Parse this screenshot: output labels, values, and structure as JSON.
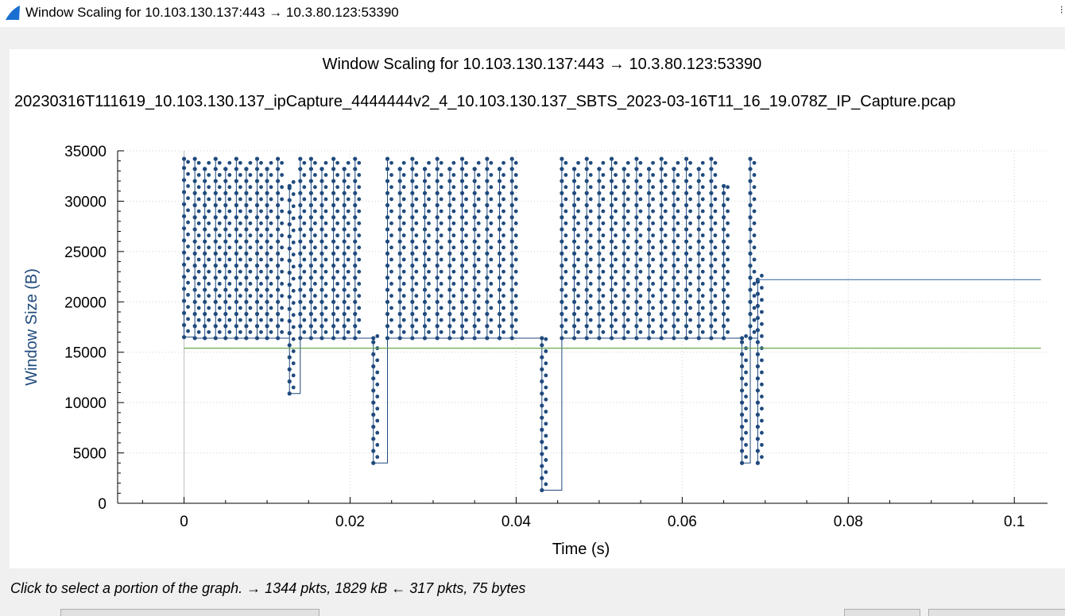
{
  "window": {
    "title": "Window Scaling for 10.103.130.137:443 → 10.3.80.123:53390",
    "icon": "wireshark-fin-icon"
  },
  "plot": {
    "title": "Window Scaling for 10.103.130.137:443 → 10.3.80.123:53390",
    "subtitle": "20230316T111619_10.103.130.137_ipCapture_4444444v2_4_10.103.130.137_SBTS_2023-03-16T11_16_19.078Z_IP_Capture.pcap"
  },
  "chart_data": {
    "type": "scatter",
    "xlabel": "Time (s)",
    "ylabel": "Window Size (B)",
    "xlim": [
      -0.008,
      0.104
    ],
    "ylim": [
      0,
      35000
    ],
    "x_ticks": [
      "0",
      "0.02",
      "0.04",
      "0.06",
      "0.08",
      "0.1"
    ],
    "x_tick_values": [
      0,
      0.02,
      0.04,
      0.06,
      0.08,
      0.1
    ],
    "y_ticks": [
      "0",
      "5000",
      "10000",
      "15000",
      "20000",
      "25000",
      "30000",
      "35000"
    ],
    "y_tick_values": [
      0,
      5000,
      10000,
      15000,
      20000,
      25000,
      30000,
      35000
    ],
    "grid": true,
    "series": [
      {
        "color": "#1f4a7d",
        "style": "step-points",
        "columns": [
          {
            "x": 0.0,
            "top": 34200,
            "bottom": 16500
          },
          {
            "x": 0.0013,
            "top": 34200,
            "bottom": 16400
          },
          {
            "x": 0.0025,
            "top": 33200,
            "bottom": 16400
          },
          {
            "x": 0.0038,
            "top": 34200,
            "bottom": 16400
          },
          {
            "x": 0.005,
            "top": 33200,
            "bottom": 16400
          },
          {
            "x": 0.0063,
            "top": 34200,
            "bottom": 16400
          },
          {
            "x": 0.0075,
            "top": 33200,
            "bottom": 16400
          },
          {
            "x": 0.0088,
            "top": 34200,
            "bottom": 16400
          },
          {
            "x": 0.01,
            "top": 33200,
            "bottom": 16400
          },
          {
            "x": 0.0113,
            "top": 34200,
            "bottom": 16400
          },
          {
            "x": 0.0127,
            "top": 31500,
            "bottom": 10900
          },
          {
            "x": 0.014,
            "top": 34200,
            "bottom": 16400
          },
          {
            "x": 0.0153,
            "top": 34200,
            "bottom": 16400
          },
          {
            "x": 0.0166,
            "top": 33200,
            "bottom": 16400
          },
          {
            "x": 0.018,
            "top": 34200,
            "bottom": 16400
          },
          {
            "x": 0.0193,
            "top": 33200,
            "bottom": 16400
          },
          {
            "x": 0.0206,
            "top": 34200,
            "bottom": 16400
          },
          {
            "x": 0.0228,
            "top": 16400,
            "bottom": 4000
          },
          {
            "x": 0.0245,
            "top": 34200,
            "bottom": 16400
          },
          {
            "x": 0.026,
            "top": 33200,
            "bottom": 16400
          },
          {
            "x": 0.0275,
            "top": 34200,
            "bottom": 16400
          },
          {
            "x": 0.029,
            "top": 33200,
            "bottom": 16400
          },
          {
            "x": 0.0305,
            "top": 34200,
            "bottom": 16400
          },
          {
            "x": 0.032,
            "top": 33200,
            "bottom": 16400
          },
          {
            "x": 0.0335,
            "top": 34200,
            "bottom": 16400
          },
          {
            "x": 0.035,
            "top": 33200,
            "bottom": 16400
          },
          {
            "x": 0.0365,
            "top": 34200,
            "bottom": 16400
          },
          {
            "x": 0.038,
            "top": 33200,
            "bottom": 16400
          },
          {
            "x": 0.0395,
            "top": 34200,
            "bottom": 16400
          },
          {
            "x": 0.0431,
            "top": 16400,
            "bottom": 1300
          },
          {
            "x": 0.0455,
            "top": 34200,
            "bottom": 16400
          },
          {
            "x": 0.047,
            "top": 33200,
            "bottom": 16400
          },
          {
            "x": 0.0485,
            "top": 34200,
            "bottom": 16400
          },
          {
            "x": 0.05,
            "top": 33200,
            "bottom": 16400
          },
          {
            "x": 0.0515,
            "top": 34200,
            "bottom": 16400
          },
          {
            "x": 0.053,
            "top": 33200,
            "bottom": 16400
          },
          {
            "x": 0.0545,
            "top": 34200,
            "bottom": 16400
          },
          {
            "x": 0.056,
            "top": 33200,
            "bottom": 16400
          },
          {
            "x": 0.0575,
            "top": 34200,
            "bottom": 16400
          },
          {
            "x": 0.059,
            "top": 33200,
            "bottom": 16400
          },
          {
            "x": 0.0605,
            "top": 34200,
            "bottom": 16400
          },
          {
            "x": 0.062,
            "top": 33200,
            "bottom": 16400
          },
          {
            "x": 0.0635,
            "top": 34200,
            "bottom": 16400
          },
          {
            "x": 0.065,
            "top": 31500,
            "bottom": 16400
          },
          {
            "x": 0.0672,
            "top": 16400,
            "bottom": 4000
          },
          {
            "x": 0.0682,
            "top": 34200,
            "bottom": 16400
          },
          {
            "x": 0.0691,
            "top": 22200,
            "bottom": 4000
          }
        ],
        "tail": {
          "x_start": 0.0691,
          "x_end": 0.1032,
          "y": 22200
        }
      },
      {
        "color": "#6aa84f",
        "style": "line",
        "points": [
          [
            0.0,
            15400
          ],
          [
            0.1032,
            15400
          ]
        ]
      }
    ]
  },
  "status": {
    "hint": "Click to select a portion of the graph. → 1344 pkts, 1829 kB ← 317 pkts, 75 bytes"
  }
}
